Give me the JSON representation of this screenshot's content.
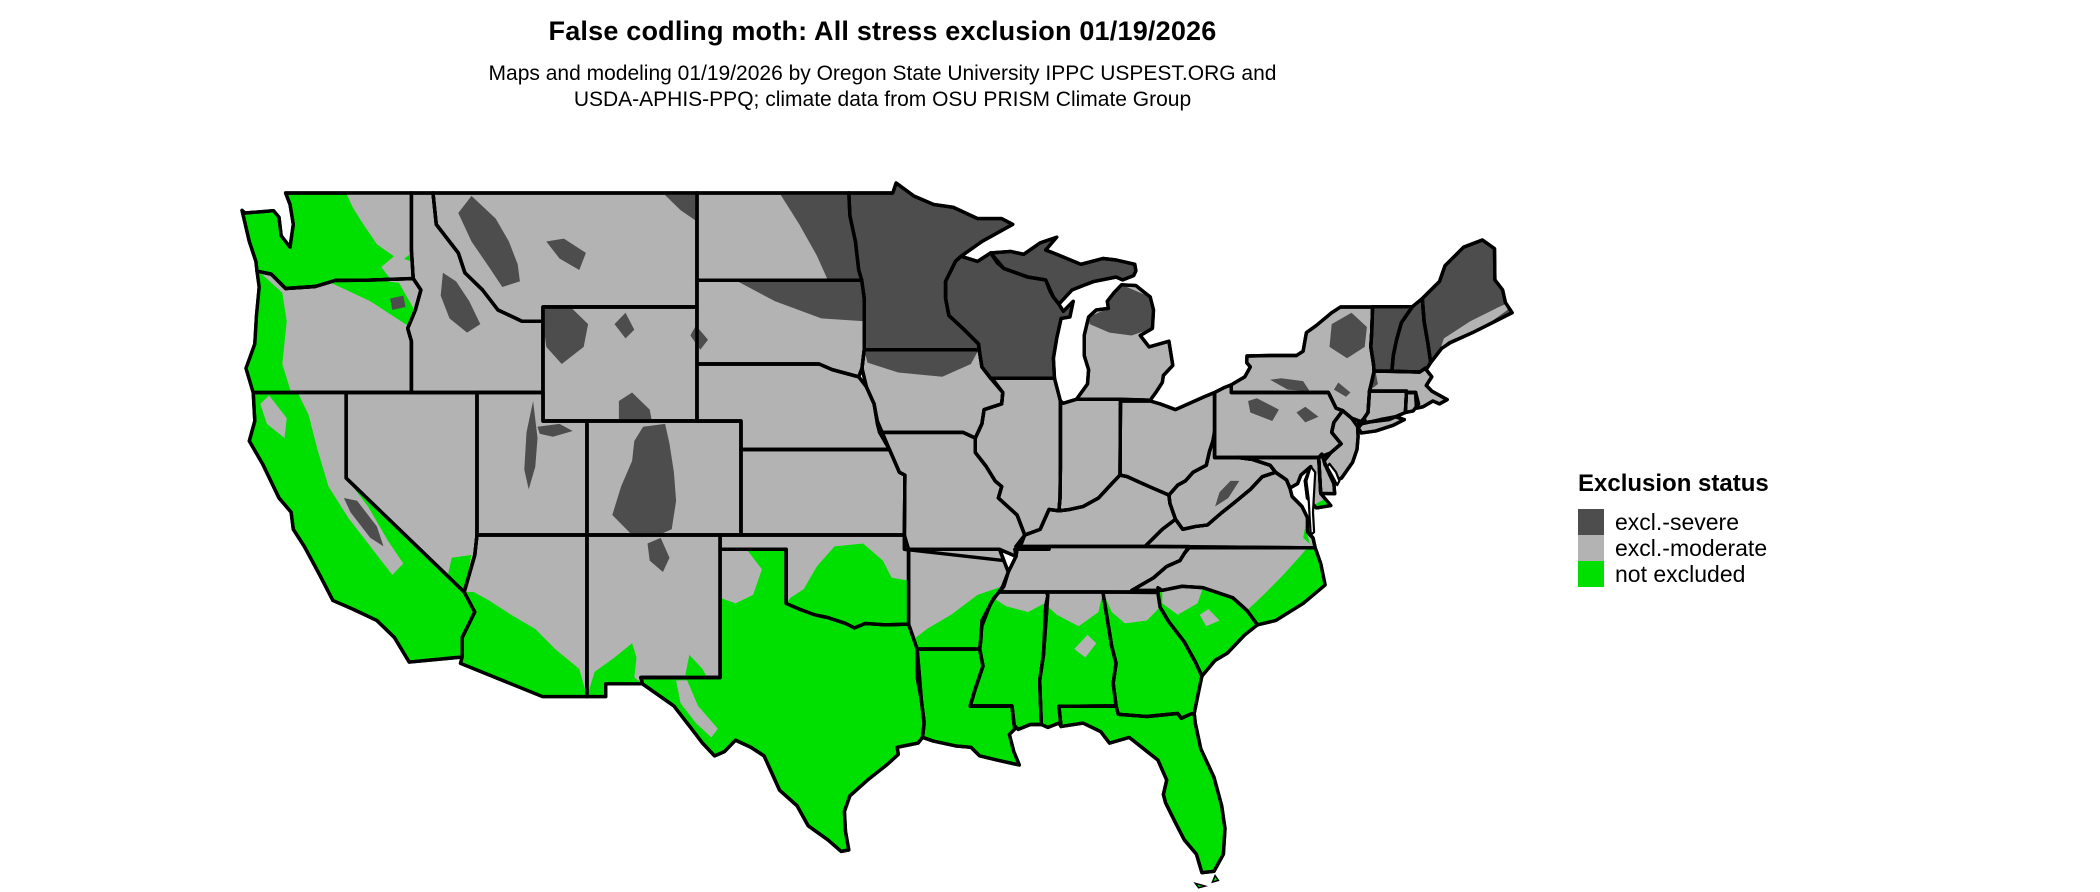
{
  "header": {
    "title": "False codling moth: All stress exclusion 01/19/2026",
    "subtitle_line1": "Maps and modeling 01/19/2026 by Oregon State University IPPC USPEST.ORG and",
    "subtitle_line2": "USDA-APHIS-PPQ; climate data from OSU PRISM Climate Group"
  },
  "legend": {
    "title": "Exclusion status",
    "items": [
      {
        "key": "severe",
        "label": "excl.-severe",
        "color": "#4d4d4d"
      },
      {
        "key": "moderate",
        "label": "excl.-moderate",
        "color": "#b3b3b3"
      },
      {
        "key": "not_excluded",
        "label": "not excluded",
        "color": "#00e000"
      }
    ]
  },
  "map_data": {
    "type": "choropleth-raster",
    "region": "Contiguous United States",
    "projection": "latitude-longitude",
    "land_default": "moderate",
    "border_color": "#000000",
    "water_color": "#ffffff",
    "state_status": {
      "WA": "not_excluded",
      "OR": "moderate",
      "CA": "not_excluded",
      "NV": "moderate",
      "ID": "moderate",
      "MT": "moderate",
      "WY": "moderate",
      "UT": "moderate",
      "CO": "moderate",
      "AZ": "moderate",
      "NM": "moderate",
      "ND": "moderate",
      "SD": "moderate",
      "NE": "moderate",
      "KS": "moderate",
      "OK": "moderate",
      "TX": "not_excluded",
      "MN": "severe",
      "IA": "moderate",
      "MO": "moderate",
      "AR": "moderate",
      "LA": "not_excluded",
      "WI": "severe",
      "IL": "moderate",
      "IN": "moderate",
      "OH": "moderate",
      "KY": "moderate",
      "TN": "moderate",
      "MI_UP": "severe",
      "MI_LP": "moderate",
      "MS": "not_excluded",
      "AL": "not_excluded",
      "GA": "not_excluded",
      "FL": "not_excluded",
      "SC": "not_excluded",
      "NC": "moderate",
      "VA": "moderate",
      "WV": "moderate",
      "MD": "moderate",
      "DE": "moderate",
      "NJ": "moderate",
      "PA": "moderate",
      "NY": "moderate",
      "CT": "moderate",
      "RI": "moderate",
      "MA": "moderate",
      "VT": "severe",
      "NH": "severe",
      "ME": "severe",
      "LI": "moderate"
    },
    "regional_details": {
      "severe": "eastern ND, northern SD, northern IA, MN, WI, upper and northern MI, Adirondacks/Catskills NY, northern PA patches, VT, NH, ME, Rocky Mountain highlands (MT, ID, WY, CO, UT, northern NM), Sierra Nevada CA, Black Hills",
      "moderate": "interior West, Great Plains, Midwest, Appalachians, Mid-Atlantic, piedmont South, ME coastal fringe",
      "not_excluded": "western WA, Columbia Basin, western OR, most of CA, southern NV, southwestern AZ, southern NM, most of TX, central-eastern OK, southern AR, LA, MS, AL, GA, FL, SC, coastal NC/VA, Delmarva fringe"
    }
  }
}
